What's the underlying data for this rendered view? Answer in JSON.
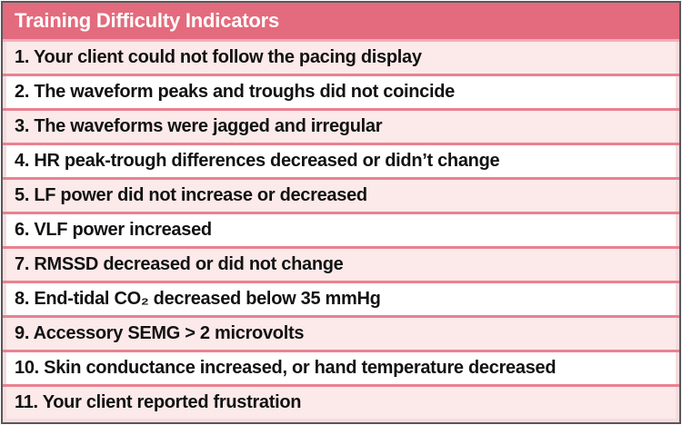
{
  "table": {
    "title": "Training Difficulty Indicators",
    "rows": [
      "1. Your client could not follow the pacing display",
      "2. The waveform peaks and troughs did not coincide",
      "3. The waveforms were jagged and irregular",
      "4. HR peak-trough differences decreased or didn’t change",
      "5. LF power did not increase or decreased",
      "6. VLF power increased",
      "7. RMSSD decreased or did not change",
      "8. End-tidal CO₂ decreased below 35 mmHg",
      "9. Accessory SEMG > 2 microvolts",
      "10. Skin conductance increased, or hand temperature decreased",
      "11. Your client reported frustration"
    ],
    "colors": {
      "header_bg": "#e36b7d",
      "header_text": "#ffffff",
      "row_divider": "#ea8191",
      "header_divider": "#f2aeb9",
      "odd_row_bg": "#fbeae9",
      "even_row_bg": "#ffffff",
      "outer_border": "#56575b",
      "body_text": "#121212"
    }
  }
}
